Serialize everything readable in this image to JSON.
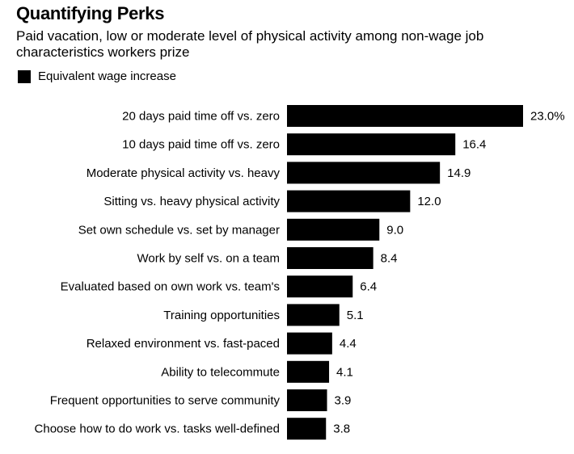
{
  "chart_data": {
    "type": "bar",
    "orientation": "horizontal",
    "title": "Quantifying Perks",
    "subtitle": "Paid vacation, low or moderate level of physical activity among non-wage job characteristics workers prize",
    "legend": {
      "position": "top-left",
      "entries": [
        "Equivalent wage increase"
      ]
    },
    "categories": [
      "20 days paid time off vs. zero",
      "10 days paid time off vs. zero",
      "Moderate physical activity vs. heavy",
      "Sitting vs. heavy physical activity",
      "Set own schedule vs. set by manager",
      "Work by self vs. on a team",
      "Evaluated based on own work vs. team's",
      "Training opportunities",
      "Relaxed environment vs. fast-paced",
      "Ability to telecommute",
      "Frequent opportunities to serve community",
      "Choose how to do work vs. tasks well-defined"
    ],
    "series": [
      {
        "name": "Equivalent wage increase",
        "values": [
          23.0,
          16.4,
          14.9,
          12.0,
          9.0,
          8.4,
          6.4,
          5.1,
          4.4,
          4.1,
          3.9,
          3.8
        ],
        "labels": [
          "23.0%",
          "16.4",
          "14.9",
          "12.0",
          "9.0",
          "8.4",
          "6.4",
          "5.1",
          "4.4",
          "4.1",
          "3.9",
          "3.8"
        ]
      }
    ],
    "xlim": [
      0,
      23.0
    ],
    "grid": false,
    "bar_color": "#000000"
  }
}
